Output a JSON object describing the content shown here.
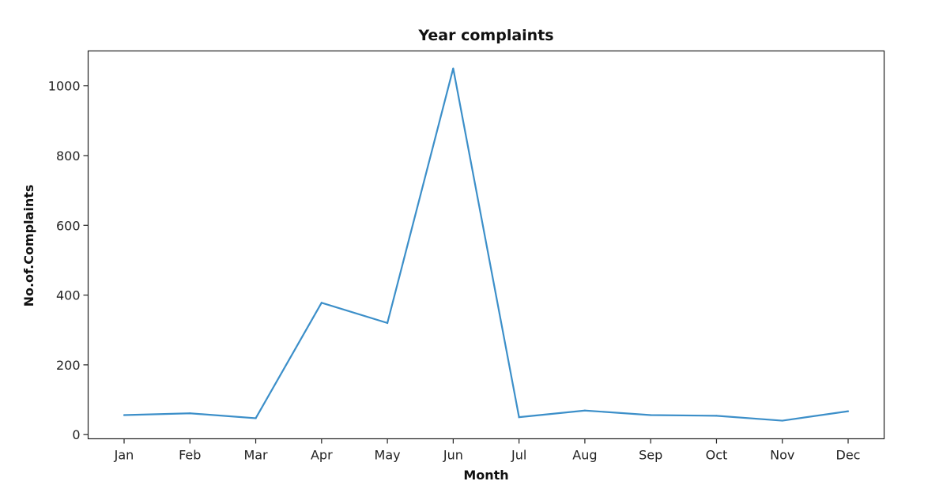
{
  "chart_data": {
    "type": "line",
    "title": "Year complaints",
    "xlabel": "Month",
    "ylabel": "No.of.Complaints",
    "categories": [
      "Jan",
      "Feb",
      "Mar",
      "Apr",
      "May",
      "Jun",
      "Jul",
      "Aug",
      "Sep",
      "Oct",
      "Nov",
      "Dec"
    ],
    "series": [
      {
        "values": [
          56,
          61,
          47,
          378,
          320,
          1050,
          50,
          69,
          56,
          54,
          40,
          67
        ],
        "color": "#3c8fc9"
      }
    ],
    "yticks": [
      0,
      200,
      400,
      600,
      800,
      1000
    ],
    "ylim": [
      -12,
      1100
    ],
    "grid": false,
    "legend": "none"
  }
}
